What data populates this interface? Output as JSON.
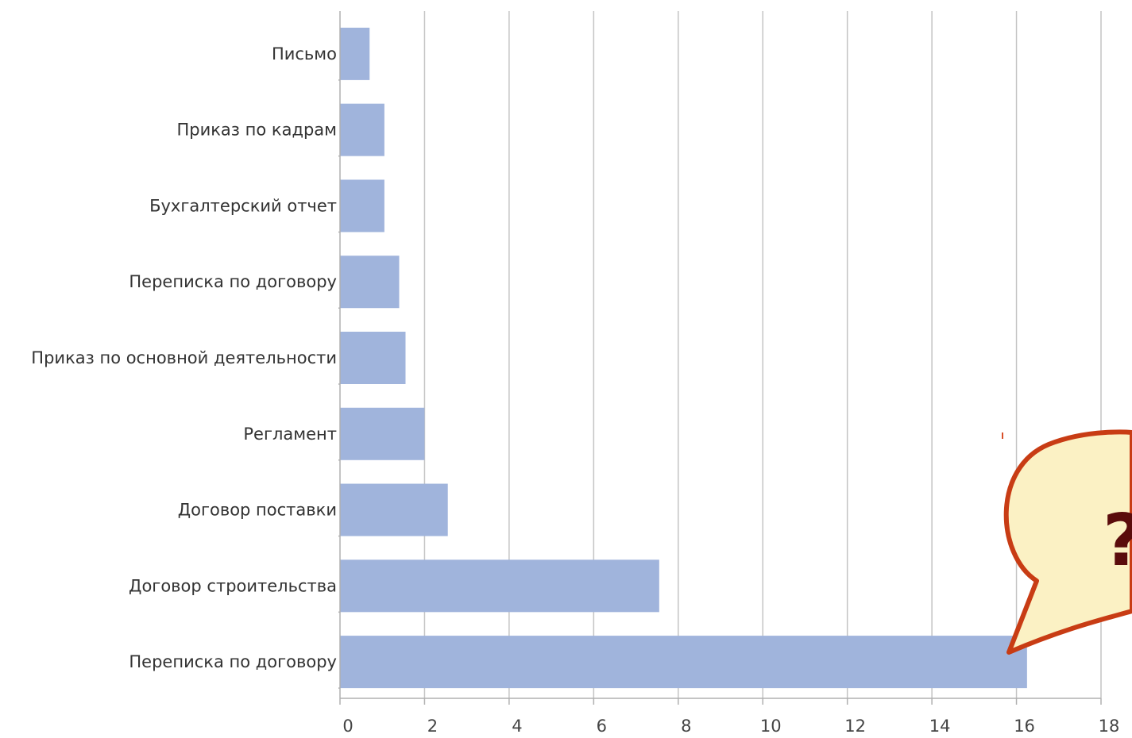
{
  "chart_data": {
    "type": "bar",
    "orientation": "horizontal",
    "categories": [
      "Письмо",
      "Приказ по кадрам",
      "Бухгалтерский отчет",
      "Переписка по договору",
      "Приказ по основной деятельности",
      "Регламент",
      "Договор поставки",
      "Договор строительства",
      "Переписка по договору"
    ],
    "values": [
      0.7,
      1.05,
      1.05,
      1.4,
      1.55,
      2.0,
      2.55,
      7.55,
      16.25
    ],
    "xticks": [
      "0",
      "2",
      "4",
      "6",
      "8",
      "10",
      "12",
      "14",
      "16",
      "18"
    ],
    "xlim": [
      0,
      18
    ],
    "grid": true,
    "bar_color": "#a0b4dc",
    "callout": {
      "text": "?",
      "fill": "#fbf1c4",
      "stroke": "#c83c14",
      "text_color": "#5a0c0c"
    }
  }
}
